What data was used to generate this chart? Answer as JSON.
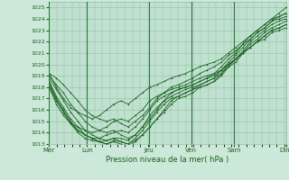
{
  "title": "Pression niveau de la mer( hPa )",
  "bg_color": "#cce8d8",
  "plot_bg_color": "#c0e0d0",
  "grid_color": "#90c0a0",
  "line_color": "#1a6020",
  "marker_color": "#1a6020",
  "ylim": [
    1013,
    1025.5
  ],
  "yticks": [
    1013,
    1014,
    1015,
    1016,
    1017,
    1018,
    1019,
    1020,
    1021,
    1022,
    1023,
    1024,
    1025
  ],
  "x_day_labels": [
    "Mer",
    "Lun",
    "Jeu",
    "Ven",
    "Sam",
    "Dim"
  ],
  "x_day_positions": [
    0,
    0.16,
    0.42,
    0.6,
    0.78,
    1.0
  ],
  "series": [
    [
      1019.2,
      1018.8,
      1018.2,
      1017.5,
      1016.8,
      1016.0,
      1015.5,
      1015.2,
      1015.0,
      1015.2,
      1014.8,
      1014.5,
      1015.0,
      1015.5,
      1016.2,
      1017.0,
      1017.5,
      1018.0,
      1018.2,
      1018.5,
      1018.8,
      1019.2,
      1019.5,
      1019.8,
      1020.2,
      1020.8,
      1021.2,
      1021.8,
      1022.2,
      1022.8,
      1023.2,
      1023.8,
      1024.2,
      1024.5
    ],
    [
      1019.0,
      1018.2,
      1017.5,
      1016.5,
      1015.8,
      1015.0,
      1014.5,
      1014.2,
      1014.0,
      1014.2,
      1013.8,
      1013.5,
      1013.8,
      1014.5,
      1015.2,
      1016.0,
      1016.8,
      1017.5,
      1017.8,
      1018.0,
      1018.2,
      1018.5,
      1018.8,
      1019.2,
      1019.8,
      1020.5,
      1021.0,
      1021.8,
      1022.5,
      1023.0,
      1023.5,
      1024.0,
      1024.2,
      1024.5
    ],
    [
      1018.8,
      1017.8,
      1016.8,
      1015.8,
      1015.0,
      1014.2,
      1013.8,
      1013.5,
      1013.3,
      1013.5,
      1013.2,
      1013.0,
      1013.3,
      1013.8,
      1014.5,
      1015.2,
      1016.0,
      1016.8,
      1017.2,
      1017.5,
      1017.8,
      1018.2,
      1018.5,
      1018.8,
      1019.5,
      1020.2,
      1020.8,
      1021.5,
      1022.2,
      1022.8,
      1023.2,
      1023.8,
      1024.0,
      1024.2
    ],
    [
      1018.5,
      1017.2,
      1016.2,
      1015.2,
      1014.5,
      1013.8,
      1013.5,
      1013.2,
      1013.0,
      1013.2,
      1013.0,
      1012.8,
      1013.2,
      1013.8,
      1014.5,
      1015.2,
      1015.8,
      1016.5,
      1017.0,
      1017.2,
      1017.5,
      1018.0,
      1018.2,
      1018.5,
      1019.2,
      1020.0,
      1020.5,
      1021.2,
      1022.0,
      1022.5,
      1023.0,
      1023.5,
      1023.8,
      1024.0
    ],
    [
      1018.5,
      1017.0,
      1016.0,
      1015.0,
      1014.2,
      1013.8,
      1013.5,
      1013.2,
      1013.0,
      1013.3,
      1013.2,
      1013.0,
      1013.5,
      1014.2,
      1015.0,
      1015.8,
      1016.5,
      1017.0,
      1017.2,
      1017.5,
      1017.8,
      1018.0,
      1018.2,
      1018.5,
      1019.0,
      1019.8,
      1020.5,
      1021.0,
      1021.8,
      1022.2,
      1022.8,
      1023.2,
      1023.5,
      1023.8
    ],
    [
      1018.2,
      1016.8,
      1015.8,
      1014.8,
      1014.0,
      1013.5,
      1013.3,
      1013.2,
      1013.3,
      1013.5,
      1013.5,
      1013.3,
      1013.8,
      1014.5,
      1015.5,
      1016.2,
      1016.8,
      1017.2,
      1017.5,
      1017.8,
      1018.0,
      1018.2,
      1018.5,
      1018.8,
      1019.2,
      1019.8,
      1020.2,
      1021.0,
      1021.5,
      1022.0,
      1022.5,
      1023.0,
      1023.2,
      1023.5
    ],
    [
      1018.2,
      1016.8,
      1015.8,
      1014.8,
      1014.2,
      1013.8,
      1013.5,
      1013.5,
      1013.8,
      1014.0,
      1014.2,
      1014.0,
      1014.5,
      1015.2,
      1016.0,
      1016.8,
      1017.2,
      1017.5,
      1017.8,
      1018.0,
      1018.2,
      1018.5,
      1018.8,
      1019.0,
      1019.5,
      1020.0,
      1020.5,
      1021.0,
      1021.5,
      1022.0,
      1022.5,
      1023.0,
      1023.2,
      1023.5
    ],
    [
      1018.0,
      1016.5,
      1015.5,
      1014.8,
      1014.5,
      1014.2,
      1014.0,
      1014.2,
      1014.5,
      1015.0,
      1015.2,
      1015.0,
      1015.5,
      1016.0,
      1016.8,
      1017.2,
      1017.5,
      1017.8,
      1018.0,
      1018.2,
      1018.5,
      1018.8,
      1019.0,
      1019.2,
      1019.5,
      1020.0,
      1020.5,
      1021.0,
      1021.5,
      1022.0,
      1022.2,
      1022.8,
      1023.0,
      1023.2
    ],
    [
      1019.2,
      1018.0,
      1017.0,
      1016.2,
      1015.8,
      1015.5,
      1015.2,
      1015.5,
      1016.0,
      1016.5,
      1016.8,
      1016.5,
      1017.0,
      1017.5,
      1018.0,
      1018.2,
      1018.5,
      1018.8,
      1019.0,
      1019.2,
      1019.5,
      1019.8,
      1020.0,
      1020.2,
      1020.5,
      1021.0,
      1021.5,
      1022.0,
      1022.5,
      1023.0,
      1023.5,
      1024.0,
      1024.5,
      1025.0
    ]
  ],
  "vline_positions": [
    0.16,
    0.42,
    0.6,
    0.78
  ],
  "vline_color": "#2a7a3a"
}
